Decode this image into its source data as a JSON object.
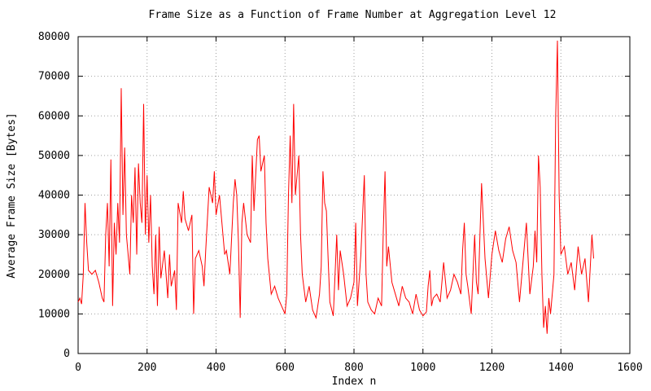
{
  "chart_data": {
    "type": "line",
    "title": "Frame Size as a Function of Frame Number at Aggregation Level 12",
    "x_label": "Index n",
    "y_label": "Average Frame Size [Bytes]",
    "x": [
      0,
      5,
      10,
      15,
      20,
      25,
      30,
      40,
      50,
      60,
      70,
      75,
      80,
      85,
      90,
      95,
      100,
      105,
      110,
      115,
      120,
      125,
      130,
      135,
      140,
      150,
      155,
      160,
      165,
      170,
      175,
      180,
      185,
      190,
      195,
      200,
      205,
      210,
      215,
      220,
      225,
      230,
      235,
      240,
      250,
      260,
      265,
      270,
      280,
      285,
      290,
      300,
      305,
      310,
      320,
      330,
      335,
      340,
      350,
      360,
      365,
      370,
      380,
      390,
      395,
      400,
      410,
      420,
      425,
      430,
      440,
      450,
      455,
      460,
      465,
      470,
      475,
      480,
      490,
      500,
      505,
      510,
      520,
      525,
      530,
      540,
      545,
      550,
      560,
      570,
      580,
      590,
      600,
      605,
      610,
      615,
      620,
      625,
      630,
      640,
      645,
      650,
      660,
      670,
      680,
      690,
      700,
      705,
      710,
      715,
      720,
      725,
      730,
      740,
      750,
      755,
      760,
      770,
      780,
      790,
      800,
      805,
      810,
      820,
      830,
      835,
      840,
      850,
      860,
      870,
      880,
      885,
      890,
      895,
      900,
      910,
      920,
      930,
      940,
      950,
      960,
      970,
      980,
      990,
      1000,
      1010,
      1015,
      1020,
      1025,
      1030,
      1040,
      1050,
      1060,
      1070,
      1080,
      1090,
      1100,
      1110,
      1115,
      1120,
      1125,
      1130,
      1140,
      1150,
      1155,
      1160,
      1170,
      1180,
      1190,
      1200,
      1210,
      1220,
      1230,
      1240,
      1250,
      1260,
      1270,
      1280,
      1290,
      1300,
      1310,
      1320,
      1325,
      1330,
      1335,
      1340,
      1345,
      1350,
      1355,
      1360,
      1365,
      1370,
      1380,
      1385,
      1390,
      1395,
      1400,
      1410,
      1420,
      1430,
      1440,
      1450,
      1460,
      1470,
      1480,
      1490,
      1495
    ],
    "series": [
      {
        "name": "Average Frame Size",
        "color": "#ff0000",
        "values": [
          13000,
          14000,
          12500,
          20000,
          38000,
          28000,
          21000,
          20000,
          21000,
          18000,
          14000,
          13000,
          30000,
          38000,
          22000,
          49000,
          12000,
          33000,
          25000,
          38000,
          28000,
          67000,
          35000,
          52000,
          30000,
          20000,
          40000,
          33000,
          47000,
          25000,
          48000,
          38000,
          33000,
          63000,
          30000,
          45000,
          28000,
          40000,
          22000,
          15000,
          30000,
          12000,
          32000,
          19000,
          26000,
          14000,
          25000,
          17000,
          21000,
          11000,
          38000,
          33000,
          41000,
          34000,
          31000,
          35000,
          10000,
          24000,
          26000,
          22000,
          17000,
          26000,
          42000,
          38000,
          46000,
          35000,
          40000,
          30000,
          25000,
          26000,
          20000,
          38000,
          44000,
          40000,
          28000,
          9000,
          33000,
          38000,
          30000,
          28000,
          50000,
          36000,
          54000,
          55000,
          46000,
          50000,
          33000,
          24000,
          15000,
          17000,
          14000,
          12000,
          10000,
          15000,
          40000,
          55000,
          38000,
          63000,
          40000,
          50000,
          30000,
          20000,
          13000,
          17000,
          11000,
          9000,
          15000,
          22000,
          46000,
          38000,
          36000,
          24000,
          13000,
          9500,
          30000,
          16000,
          26000,
          20000,
          12000,
          14000,
          18000,
          33000,
          12000,
          25000,
          45000,
          20000,
          13000,
          11000,
          10000,
          14000,
          12000,
          31000,
          46000,
          22000,
          27000,
          18000,
          15000,
          12000,
          17000,
          14000,
          13000,
          10000,
          15000,
          11000,
          9500,
          10500,
          17000,
          21000,
          12000,
          14000,
          15000,
          13000,
          23000,
          14000,
          16000,
          20000,
          18000,
          15000,
          26000,
          33000,
          20000,
          17000,
          10000,
          30000,
          18000,
          15000,
          43000,
          24000,
          14000,
          25000,
          31000,
          26000,
          23000,
          29000,
          32000,
          26000,
          23000,
          13000,
          23000,
          33000,
          15000,
          22000,
          31000,
          23000,
          50000,
          42000,
          20000,
          6500,
          12000,
          5000,
          14000,
          10000,
          20000,
          60000,
          79000,
          40000,
          25000,
          27000,
          20000,
          23000,
          16000,
          27000,
          20000,
          24000,
          13000,
          30000,
          24000
        ]
      }
    ],
    "xlim": [
      0,
      1600
    ],
    "xticks": [
      0,
      200,
      400,
      600,
      800,
      1000,
      1200,
      1400,
      1600
    ],
    "ylim": [
      0,
      80000
    ],
    "yticks": [
      0,
      10000,
      20000,
      30000,
      40000,
      50000,
      60000,
      70000,
      80000
    ],
    "grid": true
  }
}
